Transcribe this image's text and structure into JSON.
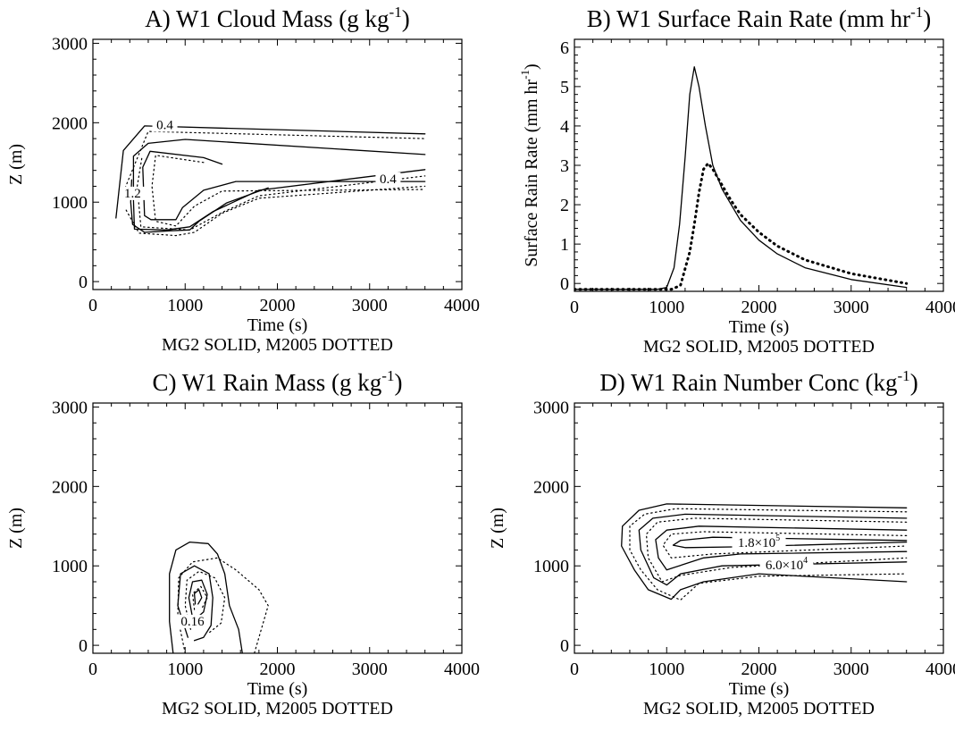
{
  "figure": {
    "caption": "MG2 SOLID, M2005 DOTTED"
  },
  "chart_data": [
    {
      "type": "contour",
      "panel_letter": "A)",
      "title_main": "W1 Cloud Mass (g kg",
      "title_sup": "-1",
      "title_end": ")",
      "xlabel": "Time (s)",
      "ylabel": "Z (m)",
      "caption": "MG2 SOLID, M2005 DOTTED",
      "xlim": [
        0,
        4000
      ],
      "ylim": [
        -100,
        3050
      ],
      "xticks": [
        "0",
        "1000",
        "2000",
        "3000",
        "4000"
      ],
      "yticks": [
        "0",
        "1000",
        "2000",
        "3000"
      ],
      "contour_labels": [
        {
          "text": "0.4",
          "x": 780,
          "y": 1920
        },
        {
          "text": "0.4",
          "x": 3200,
          "y": 1240
        },
        {
          "text": "1.2",
          "x": 430,
          "y": 1060
        }
      ],
      "series": [
        {
          "style": "solid",
          "points": [
            [
              250,
              800
            ],
            [
              330,
              1650
            ],
            [
              560,
              1960
            ],
            [
              3600,
              1860
            ]
          ]
        },
        {
          "style": "dotted",
          "points": [
            [
              350,
              1180
            ],
            [
              600,
              1890
            ],
            [
              3600,
              1800
            ]
          ]
        },
        {
          "style": "solid",
          "points": [
            [
              3600,
              1600
            ],
            [
              1000,
              1790
            ],
            [
              600,
              1740
            ],
            [
              440,
              1580
            ],
            [
              440,
              1020
            ],
            [
              450,
              660
            ],
            [
              800,
              650
            ],
            [
              1050,
              690
            ],
            [
              1300,
              880
            ],
            [
              1800,
              1150
            ],
            [
              3600,
              1410
            ]
          ]
        },
        {
          "style": "dotted",
          "points": [
            [
              530,
              1550
            ],
            [
              480,
              1200
            ],
            [
              520,
              690
            ],
            [
              1050,
              650
            ],
            [
              1400,
              870
            ],
            [
              1800,
              1080
            ],
            [
              3600,
              1330
            ]
          ]
        },
        {
          "style": "solid",
          "points": [
            [
              1400,
              1480
            ],
            [
              1200,
              1560
            ],
            [
              620,
              1640
            ],
            [
              540,
              1440
            ],
            [
              560,
              830
            ],
            [
              630,
              780
            ],
            [
              900,
              780
            ],
            [
              970,
              930
            ],
            [
              1200,
              1150
            ],
            [
              1550,
              1260
            ],
            [
              3600,
              1260
            ]
          ]
        },
        {
          "style": "dotted",
          "points": [
            [
              1200,
              1500
            ],
            [
              680,
              1590
            ],
            [
              640,
              1200
            ],
            [
              680,
              760
            ],
            [
              900,
              700
            ],
            [
              1100,
              950
            ],
            [
              1400,
              1140
            ],
            [
              3600,
              1160
            ]
          ]
        },
        {
          "style": "solid",
          "points": [
            [
              420,
              1280
            ],
            [
              410,
              1000
            ],
            [
              430,
              720
            ],
            [
              560,
              620
            ],
            [
              850,
              640
            ],
            [
              1050,
              650
            ],
            [
              1150,
              760
            ],
            [
              1450,
              990
            ],
            [
              1900,
              1180
            ]
          ]
        },
        {
          "style": "dotted",
          "points": [
            [
              360,
              900
            ],
            [
              500,
              610
            ],
            [
              900,
              580
            ],
            [
              1100,
              620
            ],
            [
              1400,
              860
            ],
            [
              1800,
              1050
            ],
            [
              3600,
              1200
            ]
          ]
        }
      ]
    },
    {
      "type": "line",
      "panel_letter": "B)",
      "title_main": "W1 Surface Rain Rate (mm hr",
      "title_sup": "-1",
      "title_end": ")",
      "xlabel": "Time (s)",
      "ylabel_main": "Surface Rain Rate (mm hr",
      "ylabel_sup": "-1",
      "ylabel_end": ")",
      "caption": "MG2 SOLID, M2005 DOTTED",
      "xlim": [
        0,
        4000
      ],
      "ylim": [
        -0.2,
        6.2
      ],
      "xticks": [
        "0",
        "1000",
        "2000",
        "3000",
        "4000"
      ],
      "yticks": [
        "0",
        "1",
        "2",
        "3",
        "4",
        "5",
        "6"
      ],
      "series": [
        {
          "style": "solid",
          "x": [
            0,
            900,
            1000,
            1080,
            1140,
            1200,
            1250,
            1300,
            1350,
            1420,
            1500,
            1600,
            1700,
            1800,
            2000,
            2200,
            2500,
            3000,
            3600
          ],
          "y": [
            -0.15,
            -0.15,
            -0.1,
            0.4,
            1.5,
            3.2,
            4.8,
            5.5,
            5.0,
            4.0,
            3.0,
            2.4,
            2.0,
            1.6,
            1.1,
            0.75,
            0.4,
            0.1,
            -0.1
          ]
        },
        {
          "style": "dotted",
          "x": [
            0,
            1050,
            1150,
            1250,
            1300,
            1350,
            1400,
            1450,
            1500,
            1600,
            1700,
            1800,
            2000,
            2200,
            2500,
            3000,
            3600
          ],
          "y": [
            -0.15,
            -0.15,
            -0.05,
            0.8,
            1.5,
            2.3,
            2.9,
            3.05,
            2.9,
            2.5,
            2.1,
            1.75,
            1.3,
            0.95,
            0.6,
            0.25,
            0.0
          ]
        }
      ]
    },
    {
      "type": "contour",
      "panel_letter": "C)",
      "title_main": "W1 Rain Mass (g kg",
      "title_sup": "-1",
      "title_end": ")",
      "xlabel": "Time (s)",
      "ylabel": "Z (m)",
      "caption": "MG2 SOLID, M2005 DOTTED",
      "xlim": [
        0,
        4000
      ],
      "ylim": [
        -100,
        3050
      ],
      "xticks": [
        "0",
        "1000",
        "2000",
        "3000",
        "4000"
      ],
      "yticks": [
        "0",
        "1000",
        "2000",
        "3000"
      ],
      "contour_labels": [
        {
          "text": "0.16",
          "x": 1080,
          "y": 250
        }
      ],
      "series": [
        {
          "style": "solid",
          "points": [
            [
              870,
              -100
            ],
            [
              830,
              300
            ],
            [
              830,
              900
            ],
            [
              900,
              1200
            ],
            [
              1050,
              1300
            ],
            [
              1250,
              1280
            ],
            [
              1350,
              1150
            ],
            [
              1430,
              900
            ],
            [
              1480,
              500
            ],
            [
              1580,
              200
            ],
            [
              1620,
              -100
            ]
          ]
        },
        {
          "style": "dotted",
          "points": [
            [
              1000,
              -100
            ],
            [
              920,
              350
            ],
            [
              930,
              850
            ],
            [
              1080,
              1050
            ],
            [
              1350,
              1100
            ],
            [
              1550,
              950
            ],
            [
              1800,
              700
            ],
            [
              1900,
              500
            ],
            [
              1750,
              -100
            ]
          ]
        },
        {
          "style": "solid",
          "points": [
            [
              1030,
              100
            ],
            [
              920,
              500
            ],
            [
              950,
              900
            ],
            [
              1100,
              1000
            ],
            [
              1260,
              900
            ],
            [
              1300,
              600
            ],
            [
              1280,
              250
            ],
            [
              1200,
              100
            ],
            [
              1100,
              60
            ]
          ]
        },
        {
          "style": "dotted",
          "points": [
            [
              1060,
              200
            ],
            [
              1000,
              500
            ],
            [
              1020,
              820
            ],
            [
              1150,
              930
            ],
            [
              1320,
              850
            ],
            [
              1430,
              600
            ],
            [
              1390,
              280
            ],
            [
              1250,
              150
            ]
          ]
        },
        {
          "style": "solid",
          "points": [
            [
              1080,
              350
            ],
            [
              1040,
              600
            ],
            [
              1080,
              800
            ],
            [
              1180,
              820
            ],
            [
              1240,
              640
            ],
            [
              1200,
              420
            ],
            [
              1120,
              340
            ]
          ]
        },
        {
          "style": "dotted",
          "points": [
            [
              1100,
              450
            ],
            [
              1080,
              650
            ],
            [
              1170,
              740
            ],
            [
              1240,
              600
            ],
            [
              1180,
              460
            ]
          ]
        },
        {
          "style": "solid",
          "points": [
            [
              1110,
              520
            ],
            [
              1100,
              650
            ],
            [
              1150,
              700
            ],
            [
              1180,
              600
            ],
            [
              1140,
              520
            ]
          ]
        }
      ]
    },
    {
      "type": "contour",
      "panel_letter": "D)",
      "title_main": "W1 Rain Number Conc (kg",
      "title_sup": "-1",
      "title_end": ")",
      "xlabel": "Time (s)",
      "ylabel": "Z (m)",
      "caption": "MG2 SOLID, M2005 DOTTED",
      "xlim": [
        0,
        4000
      ],
      "ylim": [
        -100,
        3050
      ],
      "xticks": [
        "0",
        "1000",
        "2000",
        "3000",
        "4000"
      ],
      "yticks": [
        "0",
        "1000",
        "2000",
        "3000"
      ],
      "contour_labels": [
        {
          "text": "1.8×10",
          "sup": "5",
          "x": 2000,
          "y": 1240
        },
        {
          "text": "6.0×10",
          "sup": "4",
          "x": 2300,
          "y": 960
        }
      ],
      "series": [
        {
          "style": "solid",
          "points": [
            [
              3600,
              1730
            ],
            [
              1000,
              1780
            ],
            [
              700,
              1700
            ],
            [
              520,
              1500
            ],
            [
              510,
              1250
            ],
            [
              650,
              950
            ],
            [
              800,
              700
            ],
            [
              1050,
              580
            ],
            [
              1150,
              700
            ],
            [
              1400,
              800
            ],
            [
              2000,
              900
            ],
            [
              3600,
              800
            ]
          ]
        },
        {
          "style": "dotted",
          "points": [
            [
              3600,
              1680
            ],
            [
              1100,
              1720
            ],
            [
              760,
              1650
            ],
            [
              600,
              1500
            ],
            [
              600,
              1200
            ],
            [
              720,
              950
            ],
            [
              900,
              700
            ],
            [
              1150,
              570
            ],
            [
              1350,
              780
            ],
            [
              2000,
              870
            ],
            [
              3600,
              900
            ]
          ]
        },
        {
          "style": "solid",
          "points": [
            [
              3600,
              1600
            ],
            [
              1200,
              1650
            ],
            [
              850,
              1600
            ],
            [
              700,
              1450
            ],
            [
              720,
              1200
            ],
            [
              860,
              850
            ],
            [
              1000,
              760
            ],
            [
              1150,
              900
            ],
            [
              1600,
              1000
            ],
            [
              3600,
              1050
            ]
          ]
        },
        {
          "style": "dotted",
          "points": [
            [
              3600,
              1550
            ],
            [
              1300,
              1600
            ],
            [
              900,
              1550
            ],
            [
              780,
              1400
            ],
            [
              800,
              1100
            ],
            [
              950,
              800
            ],
            [
              1150,
              880
            ],
            [
              1700,
              980
            ],
            [
              3600,
              1100
            ]
          ]
        },
        {
          "style": "solid",
          "points": [
            [
              3600,
              1450
            ],
            [
              1350,
              1500
            ],
            [
              1000,
              1450
            ],
            [
              880,
              1330
            ],
            [
              910,
              1100
            ],
            [
              1000,
              950
            ],
            [
              1400,
              1100
            ],
            [
              1800,
              1150
            ],
            [
              3600,
              1180
            ]
          ]
        },
        {
          "style": "dotted",
          "points": [
            [
              3600,
              1380
            ],
            [
              1400,
              1430
            ],
            [
              1050,
              1400
            ],
            [
              960,
              1260
            ],
            [
              1050,
              1100
            ],
            [
              1500,
              1150
            ],
            [
              3600,
              1250
            ]
          ]
        },
        {
          "style": "solid",
          "points": [
            [
              3600,
              1320
            ],
            [
              1500,
              1360
            ],
            [
              1150,
              1320
            ],
            [
              1070,
              1260
            ],
            [
              1200,
              1230
            ],
            [
              1800,
              1240
            ],
            [
              3600,
              1300
            ]
          ]
        }
      ]
    }
  ]
}
